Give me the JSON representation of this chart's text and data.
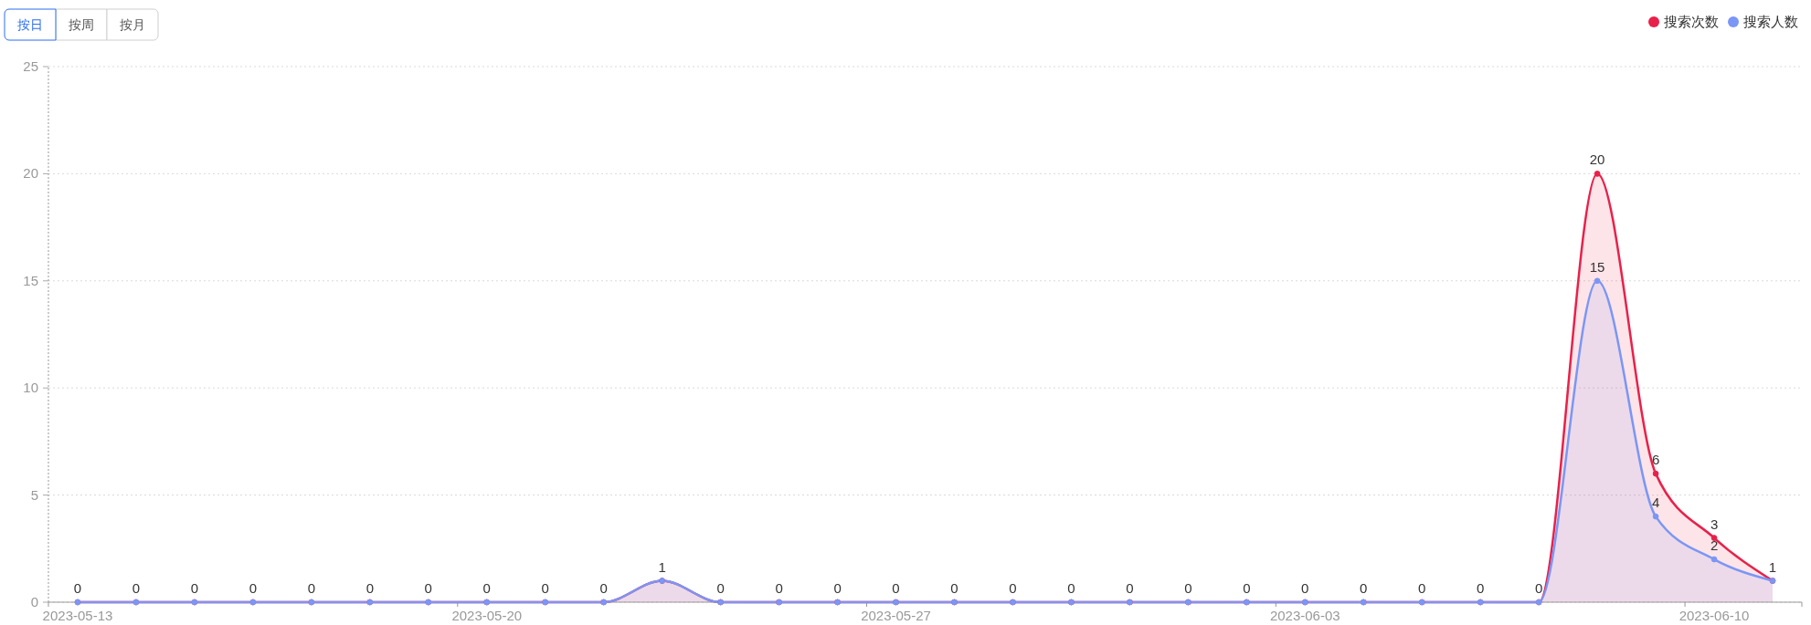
{
  "chart_data": {
    "type": "area",
    "categories": [
      "2023-05-13",
      null,
      null,
      null,
      null,
      null,
      null,
      "2023-05-20",
      null,
      null,
      null,
      null,
      null,
      null,
      "2023-05-27",
      null,
      null,
      null,
      null,
      null,
      null,
      "2023-06-03",
      null,
      null,
      null,
      null,
      null,
      null,
      "2023-06-10",
      null
    ],
    "series": [
      {
        "name": "搜索次数",
        "color": "#e8214a",
        "values": [
          0,
          0,
          0,
          0,
          0,
          0,
          0,
          0,
          0,
          0,
          1,
          0,
          0,
          0,
          0,
          0,
          0,
          0,
          0,
          0,
          0,
          0,
          0,
          0,
          0,
          0,
          20,
          6,
          3,
          1
        ],
        "value_labels": [
          "0",
          "0",
          "0",
          "0",
          "0",
          "0",
          "0",
          "0",
          "0",
          "0",
          "1",
          "0",
          "0",
          "0",
          "0",
          "0",
          "0",
          "0",
          "0",
          "0",
          "0",
          "0",
          "0",
          "0",
          "0",
          "0",
          "20",
          "6",
          "3",
          "1"
        ]
      },
      {
        "name": "搜索人数",
        "color": "#7b96f5",
        "values": [
          0,
          0,
          0,
          0,
          0,
          0,
          0,
          0,
          0,
          0,
          1,
          0,
          0,
          0,
          0,
          0,
          0,
          0,
          0,
          0,
          0,
          0,
          0,
          0,
          0,
          0,
          15,
          4,
          2,
          1
        ],
        "value_labels": [
          null,
          null,
          null,
          null,
          null,
          null,
          null,
          null,
          null,
          null,
          null,
          null,
          null,
          null,
          null,
          null,
          null,
          null,
          null,
          null,
          null,
          null,
          null,
          null,
          null,
          null,
          "15",
          "4",
          "2",
          null
        ]
      }
    ],
    "ylim": [
      0,
      25
    ],
    "yticks": [
      0,
      5,
      10,
      15,
      20,
      25
    ],
    "grid": "y",
    "legend": "top right",
    "marker": "circle",
    "annotations": [
      "按日",
      "按周",
      "按月"
    ]
  }
}
